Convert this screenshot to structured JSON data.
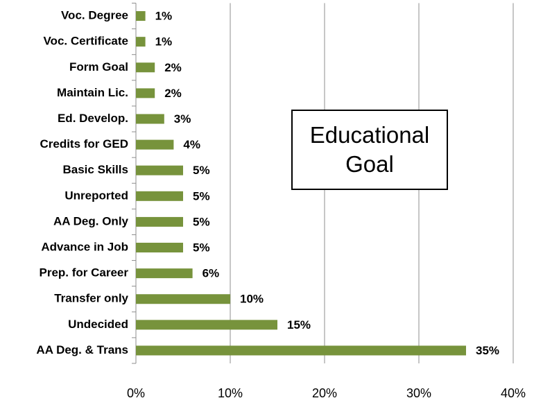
{
  "chart_data": {
    "type": "hbar",
    "annotation": "Educational Goal",
    "categories": [
      "Voc. Degree",
      "Voc. Certificate",
      "Form Goal",
      "Maintain Lic.",
      "Ed. Develop.",
      "Credits for GED",
      "Basic Skills",
      "Unreported",
      "AA Deg. Only",
      "Advance in Job",
      "Prep. for Career",
      "Transfer only",
      "Undecided",
      "AA Deg. & Trans"
    ],
    "values": [
      1,
      1,
      2,
      2,
      3,
      4,
      5,
      5,
      5,
      5,
      6,
      10,
      15,
      35
    ],
    "value_labels": [
      "1%",
      "1%",
      "2%",
      "2%",
      "3%",
      "4%",
      "5%",
      "5%",
      "5%",
      "5%",
      "6%",
      "10%",
      "15%",
      "35%"
    ],
    "color": "#77933c",
    "xlim": [
      0,
      40
    ],
    "xticks": [
      {
        "value": 0,
        "label": "0%"
      },
      {
        "value": 10,
        "label": "10%"
      },
      {
        "value": 20,
        "label": "20%"
      },
      {
        "value": 30,
        "label": "30%"
      },
      {
        "value": 40,
        "label": "40%"
      }
    ],
    "grid": true
  }
}
